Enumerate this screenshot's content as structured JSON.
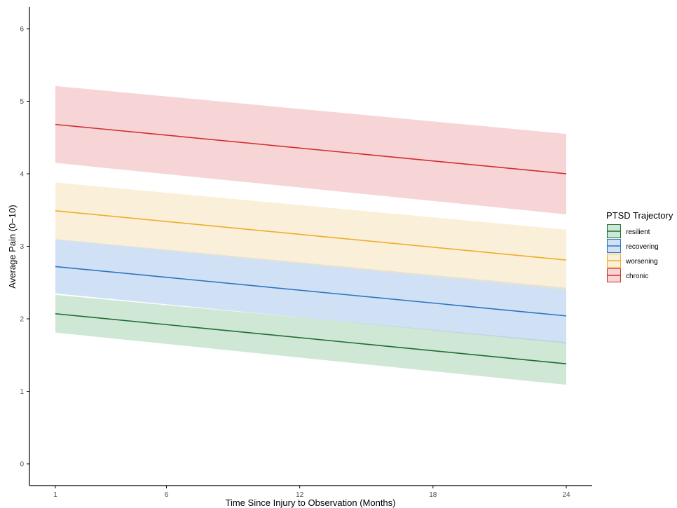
{
  "chart_data": {
    "type": "line",
    "title": "",
    "xlabel": "Time Since Injury to Observation (Months)",
    "ylabel": "Average Pain (0−10)",
    "xlim": [
      1,
      24
    ],
    "ylim": [
      0,
      6
    ],
    "x_ticks": [
      1,
      6,
      12,
      18,
      24
    ],
    "y_ticks": [
      0,
      1,
      2,
      3,
      4,
      5,
      6
    ],
    "grid": false,
    "legend": {
      "title": "PTSD Trajectory",
      "position": "right"
    },
    "series": [
      {
        "name": "resilient",
        "color": "#1b6e34",
        "fill": "#a8d3b3",
        "x": [
          1,
          24
        ],
        "y": [
          2.07,
          1.38
        ],
        "lower": [
          1.81,
          1.09
        ],
        "upper": [
          2.33,
          1.68
        ]
      },
      {
        "name": "recovering",
        "color": "#2f73c2",
        "fill": "#a9c9ec",
        "x": [
          1,
          24
        ],
        "y": [
          2.72,
          2.04
        ],
        "lower": [
          2.35,
          1.66
        ],
        "upper": [
          3.1,
          2.43
        ]
      },
      {
        "name": "worsening",
        "color": "#f0ac2c",
        "fill": "#f6e3b9",
        "x": [
          1,
          24
        ],
        "y": [
          3.49,
          2.81
        ],
        "lower": [
          3.09,
          2.4
        ],
        "upper": [
          3.88,
          3.23
        ]
      },
      {
        "name": "chronic",
        "color": "#d42c2c",
        "fill": "#f0b3b6",
        "x": [
          1,
          24
        ],
        "y": [
          4.68,
          4.0
        ],
        "lower": [
          4.15,
          3.44
        ],
        "upper": [
          5.21,
          4.55
        ]
      }
    ]
  }
}
